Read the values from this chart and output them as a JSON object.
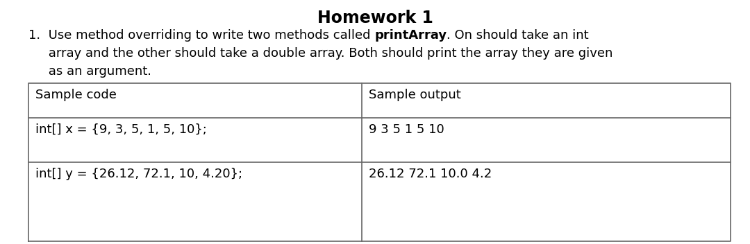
{
  "title": "Homework 1",
  "title_fontsize": 17,
  "title_fontweight": "bold",
  "body_fontsize": 13,
  "body_fontfamily": "DejaVu Sans",
  "line1_pre": "1.  Use method overriding to write two methods called ",
  "line1_bold": "printArray",
  "line1_post": ". On should take an int",
  "line2": "     array and the other should take a double array. Both should print the array they are given",
  "line3": "     as an argument.",
  "table_header_left": "Sample code",
  "table_header_right": "Sample output",
  "table_row1_left": "int[] x = {9, 3, 5, 1, 5, 10};",
  "table_row1_right": "9 3 5 1 5 10",
  "table_row2_left": "int[] y = {26.12, 72.1, 10, 4.20};",
  "table_row2_right": "26.12 72.1 10.0 4.2",
  "table_fontsize": 13,
  "bg_color": "#ffffff",
  "text_color": "#000000",
  "border_color": "#666666"
}
